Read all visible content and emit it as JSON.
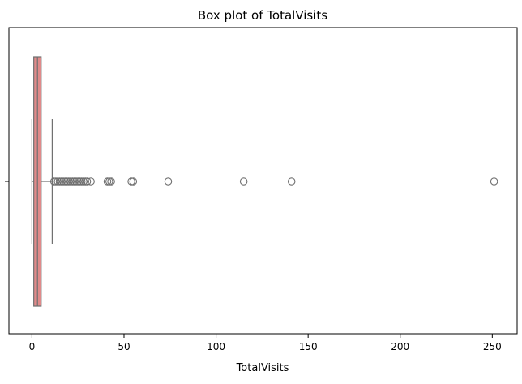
{
  "chart_data": {
    "type": "box",
    "title": "Box plot of TotalVisits",
    "xlabel": "TotalVisits",
    "ylabel": "",
    "orientation": "horizontal",
    "xlim": [
      -12.5,
      263.5
    ],
    "xticks": [
      0,
      50,
      100,
      150,
      200,
      250
    ],
    "xtick_labels": [
      "0",
      "50",
      "100",
      "150",
      "200",
      "250"
    ],
    "grid": false,
    "series": [
      {
        "color": "#e08a8a",
        "edge_color": "#6f6f6f",
        "whisker_low": 0,
        "q1": 1,
        "median": 3,
        "q3": 5,
        "whisker_high": 11,
        "outliers": [
          12,
          13,
          14,
          15,
          16,
          17,
          18,
          19,
          20,
          21,
          22,
          23,
          24,
          25,
          26,
          27,
          28,
          29,
          30,
          32,
          41,
          42,
          43,
          54,
          55,
          74,
          115,
          141,
          251
        ]
      }
    ]
  }
}
